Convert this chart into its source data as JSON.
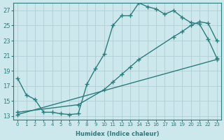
{
  "bg_color": "#cce8ed",
  "grid_color": "#b0ced4",
  "line_color": "#2a7d7b",
  "marker": "+",
  "markersize": 4,
  "linewidth": 1.0,
  "xlabel": "Humidex (Indice chaleur)",
  "xlim": [
    -0.5,
    23.5
  ],
  "ylim": [
    12.5,
    28.0
  ],
  "yticks": [
    13,
    15,
    17,
    19,
    21,
    23,
    25,
    27
  ],
  "xticks": [
    0,
    1,
    2,
    3,
    4,
    5,
    6,
    7,
    8,
    9,
    10,
    11,
    12,
    13,
    14,
    15,
    16,
    17,
    18,
    19,
    20,
    21,
    22,
    23
  ],
  "line1_x": [
    0,
    1,
    2,
    3,
    4,
    5,
    6,
    7,
    8,
    9,
    10,
    11,
    12,
    13,
    14,
    15,
    16,
    17,
    18,
    19,
    20,
    21,
    22,
    23
  ],
  "line1_y": [
    18.0,
    15.8,
    15.2,
    13.5,
    13.5,
    13.3,
    13.2,
    13.3,
    17.2,
    19.3,
    21.2,
    25.0,
    26.3,
    26.3,
    28.0,
    27.5,
    27.2,
    26.5,
    27.0,
    26.1,
    25.4,
    25.2,
    23.2,
    20.7
  ],
  "line2_x": [
    0,
    7,
    10,
    11,
    12,
    13,
    14,
    18,
    19,
    20,
    21,
    22,
    23
  ],
  "line2_y": [
    13.5,
    14.5,
    16.5,
    17.5,
    18.5,
    19.5,
    20.5,
    23.5,
    24.2,
    25.0,
    25.5,
    25.3,
    23.0
  ],
  "line3_x": [
    0,
    23
  ],
  "line3_y": [
    13.2,
    20.5
  ]
}
